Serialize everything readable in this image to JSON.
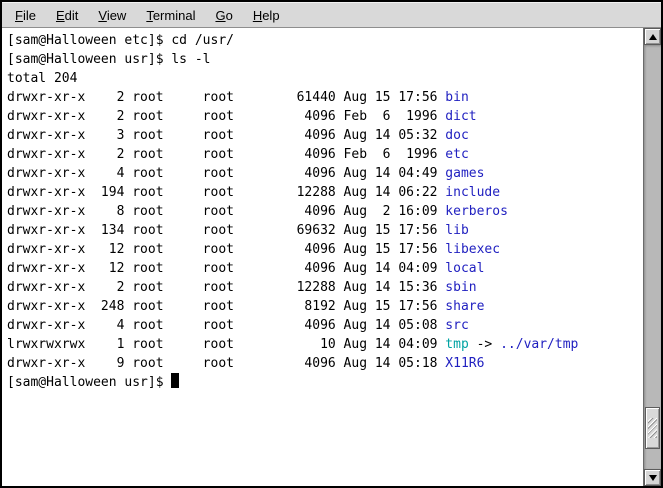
{
  "colors": {
    "menubar_bg": "#d9d9d9",
    "terminal_bg": "#ffffff",
    "terminal_fg": "#000000",
    "directory": "#1f1fc0",
    "symlink": "#00a3a3"
  },
  "menu": {
    "items": [
      {
        "label": "File"
      },
      {
        "label": "Edit"
      },
      {
        "label": "View"
      },
      {
        "label": "Terminal"
      },
      {
        "label": "Go"
      },
      {
        "label": "Help"
      }
    ]
  },
  "terminal": {
    "history": [
      "[sam@Halloween etc]$ cd /usr/",
      "[sam@Halloween usr]$ ls -l",
      "total 204"
    ],
    "listing": [
      {
        "perms": "drwxr-xr-x",
        "links": "2",
        "owner": "root",
        "group": "root",
        "size": "61440",
        "month": "Aug",
        "day": "15",
        "time": "17:56",
        "name": "bin",
        "kind": "dir"
      },
      {
        "perms": "drwxr-xr-x",
        "links": "2",
        "owner": "root",
        "group": "root",
        "size": "4096",
        "month": "Feb",
        "day": "6",
        "time": "1996",
        "name": "dict",
        "kind": "dir"
      },
      {
        "perms": "drwxr-xr-x",
        "links": "3",
        "owner": "root",
        "group": "root",
        "size": "4096",
        "month": "Aug",
        "day": "14",
        "time": "05:32",
        "name": "doc",
        "kind": "dir"
      },
      {
        "perms": "drwxr-xr-x",
        "links": "2",
        "owner": "root",
        "group": "root",
        "size": "4096",
        "month": "Feb",
        "day": "6",
        "time": "1996",
        "name": "etc",
        "kind": "dir"
      },
      {
        "perms": "drwxr-xr-x",
        "links": "4",
        "owner": "root",
        "group": "root",
        "size": "4096",
        "month": "Aug",
        "day": "14",
        "time": "04:49",
        "name": "games",
        "kind": "dir"
      },
      {
        "perms": "drwxr-xr-x",
        "links": "194",
        "owner": "root",
        "group": "root",
        "size": "12288",
        "month": "Aug",
        "day": "14",
        "time": "06:22",
        "name": "include",
        "kind": "dir"
      },
      {
        "perms": "drwxr-xr-x",
        "links": "8",
        "owner": "root",
        "group": "root",
        "size": "4096",
        "month": "Aug",
        "day": "2",
        "time": "16:09",
        "name": "kerberos",
        "kind": "dir"
      },
      {
        "perms": "drwxr-xr-x",
        "links": "134",
        "owner": "root",
        "group": "root",
        "size": "69632",
        "month": "Aug",
        "day": "15",
        "time": "17:56",
        "name": "lib",
        "kind": "dir"
      },
      {
        "perms": "drwxr-xr-x",
        "links": "12",
        "owner": "root",
        "group": "root",
        "size": "4096",
        "month": "Aug",
        "day": "15",
        "time": "17:56",
        "name": "libexec",
        "kind": "dir"
      },
      {
        "perms": "drwxr-xr-x",
        "links": "12",
        "owner": "root",
        "group": "root",
        "size": "4096",
        "month": "Aug",
        "day": "14",
        "time": "04:09",
        "name": "local",
        "kind": "dir"
      },
      {
        "perms": "drwxr-xr-x",
        "links": "2",
        "owner": "root",
        "group": "root",
        "size": "12288",
        "month": "Aug",
        "day": "14",
        "time": "15:36",
        "name": "sbin",
        "kind": "dir"
      },
      {
        "perms": "drwxr-xr-x",
        "links": "248",
        "owner": "root",
        "group": "root",
        "size": "8192",
        "month": "Aug",
        "day": "15",
        "time": "17:56",
        "name": "share",
        "kind": "dir"
      },
      {
        "perms": "drwxr-xr-x",
        "links": "4",
        "owner": "root",
        "group": "root",
        "size": "4096",
        "month": "Aug",
        "day": "14",
        "time": "05:08",
        "name": "src",
        "kind": "dir"
      },
      {
        "perms": "lrwxrwxrwx",
        "links": "1",
        "owner": "root",
        "group": "root",
        "size": "10",
        "month": "Aug",
        "day": "14",
        "time": "04:09",
        "name": "tmp",
        "kind": "symlink",
        "arrow": "->",
        "target": "../var/tmp",
        "target_kind": "dir"
      },
      {
        "perms": "drwxr-xr-x",
        "links": "9",
        "owner": "root",
        "group": "root",
        "size": "4096",
        "month": "Aug",
        "day": "14",
        "time": "05:18",
        "name": "X11R6",
        "kind": "dir"
      }
    ],
    "prompt": "[sam@Halloween usr]$"
  }
}
